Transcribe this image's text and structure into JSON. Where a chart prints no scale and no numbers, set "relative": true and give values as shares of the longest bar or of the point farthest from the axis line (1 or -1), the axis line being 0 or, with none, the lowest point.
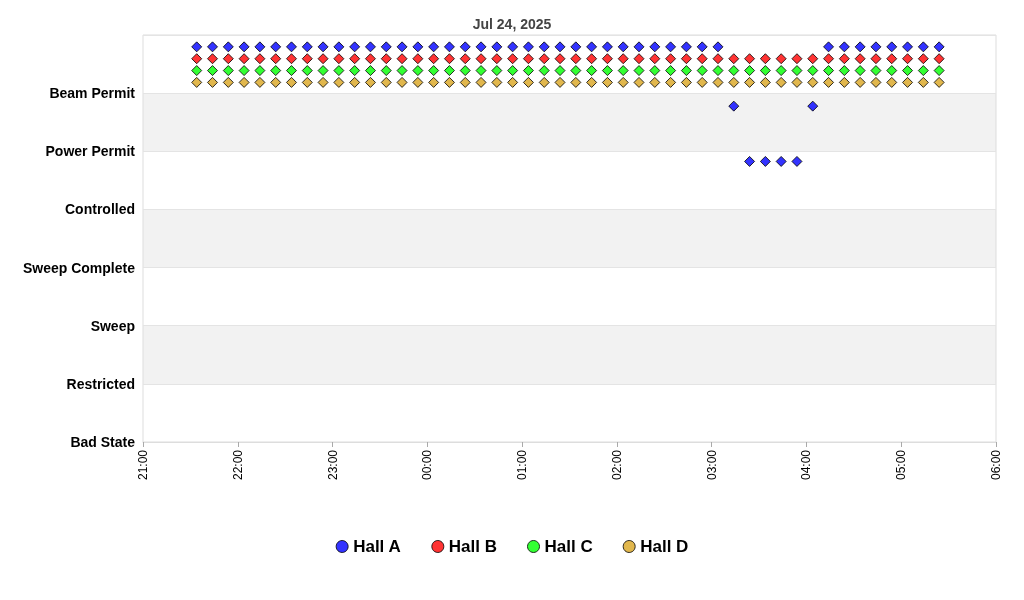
{
  "chart_data": {
    "type": "scatter",
    "title": "Jul 24, 2025",
    "relative": true,
    "x": [
      "2025-07-24T21:34",
      "2025-07-24T21:44",
      "2025-07-24T21:54",
      "2025-07-24T22:04",
      "2025-07-24T22:14",
      "2025-07-24T22:24",
      "2025-07-24T22:34",
      "2025-07-24T22:44",
      "2025-07-24T22:54",
      "2025-07-24T23:04",
      "2025-07-24T23:14",
      "2025-07-24T23:24",
      "2025-07-24T23:34",
      "2025-07-24T23:44",
      "2025-07-24T23:54",
      "2025-07-25T00:04",
      "2025-07-25T00:14",
      "2025-07-25T00:24",
      "2025-07-25T00:34",
      "2025-07-25T00:44",
      "2025-07-25T00:54",
      "2025-07-25T01:04",
      "2025-07-25T01:14",
      "2025-07-25T01:24",
      "2025-07-25T01:34",
      "2025-07-25T01:44",
      "2025-07-25T01:54",
      "2025-07-25T02:04",
      "2025-07-25T02:14",
      "2025-07-25T02:24",
      "2025-07-25T02:34",
      "2025-07-25T02:44",
      "2025-07-25T02:54",
      "2025-07-25T03:04",
      "2025-07-25T03:14",
      "2025-07-25T03:24",
      "2025-07-25T03:34",
      "2025-07-25T03:44",
      "2025-07-25T03:54",
      "2025-07-25T04:04",
      "2025-07-25T04:14",
      "2025-07-25T04:24",
      "2025-07-25T04:34",
      "2025-07-25T04:44",
      "2025-07-25T04:54",
      "2025-07-25T05:04",
      "2025-07-25T05:14",
      "2025-07-25T05:24"
    ],
    "series": [
      {
        "name": "Hall A",
        "color": "#0000ff",
        "values": [
          1,
          1,
          1,
          1,
          1,
          1,
          1,
          1,
          1,
          1,
          1,
          1,
          1,
          1,
          1,
          1,
          1,
          1,
          1,
          1,
          1,
          1,
          1,
          1,
          1,
          1,
          1,
          1,
          1,
          1,
          1,
          1,
          1,
          1,
          0.85,
          0.71,
          0.71,
          0.71,
          0.71,
          0.85,
          1,
          1,
          1,
          1,
          1,
          1,
          1,
          1
        ]
      },
      {
        "name": "Hall B",
        "color": "#ff0000",
        "values": [
          0.97,
          0.97,
          0.97,
          0.97,
          0.97,
          0.97,
          0.97,
          0.97,
          0.97,
          0.97,
          0.97,
          0.97,
          0.97,
          0.97,
          0.97,
          0.97,
          0.97,
          0.97,
          0.97,
          0.97,
          0.97,
          0.97,
          0.97,
          0.97,
          0.97,
          0.97,
          0.97,
          0.97,
          0.97,
          0.97,
          0.97,
          0.97,
          0.97,
          0.97,
          0.97,
          0.97,
          0.97,
          0.97,
          0.97,
          0.97,
          0.97,
          0.97,
          0.97,
          0.97,
          0.97,
          0.97,
          0.97,
          0.97
        ]
      },
      {
        "name": "Hall C",
        "color": "#00ff00",
        "values": [
          0.94,
          0.94,
          0.94,
          0.94,
          0.94,
          0.94,
          0.94,
          0.94,
          0.94,
          0.94,
          0.94,
          0.94,
          0.94,
          0.94,
          0.94,
          0.94,
          0.94,
          0.94,
          0.94,
          0.94,
          0.94,
          0.94,
          0.94,
          0.94,
          0.94,
          0.94,
          0.94,
          0.94,
          0.94,
          0.94,
          0.94,
          0.94,
          0.94,
          0.94,
          0.94,
          0.94,
          0.94,
          0.94,
          0.94,
          0.94,
          0.94,
          0.94,
          0.94,
          0.94,
          0.94,
          0.94,
          0.94,
          0.94
        ]
      },
      {
        "name": "Hall D",
        "color": "#daa520",
        "values": [
          0.91,
          0.91,
          0.91,
          0.91,
          0.91,
          0.91,
          0.91,
          0.91,
          0.91,
          0.91,
          0.91,
          0.91,
          0.91,
          0.91,
          0.91,
          0.91,
          0.91,
          0.91,
          0.91,
          0.91,
          0.91,
          0.91,
          0.91,
          0.91,
          0.91,
          0.91,
          0.91,
          0.91,
          0.91,
          0.91,
          0.91,
          0.91,
          0.91,
          0.91,
          0.91,
          0.91,
          0.91,
          0.91,
          0.91,
          0.91,
          0.91,
          0.91,
          0.91,
          0.91,
          0.91,
          0.91,
          0.91,
          0.91
        ]
      }
    ],
    "annotations": [
      "Beam Permit",
      "Power Permit",
      "Controlled",
      "Sweep Complete",
      "Sweep",
      "Restricted",
      "Bad State"
    ],
    "xlim": [
      "2025-07-24T21:00",
      "2025-07-25T06:00"
    ],
    "xticks": [
      {
        "value": "2025-07-24T21:00",
        "label": "21:00"
      },
      {
        "value": "2025-07-24T22:00",
        "label": "22:00"
      },
      {
        "value": "2025-07-24T23:00",
        "label": "23:00"
      },
      {
        "value": "2025-07-25T00:00",
        "label": "00:00"
      },
      {
        "value": "2025-07-25T01:00",
        "label": "01:00"
      },
      {
        "value": "2025-07-25T02:00",
        "label": "02:00"
      },
      {
        "value": "2025-07-25T03:00",
        "label": "03:00"
      },
      {
        "value": "2025-07-25T04:00",
        "label": "04:00"
      },
      {
        "value": "2025-07-25T05:00",
        "label": "05:00"
      },
      {
        "value": "2025-07-25T06:00",
        "label": "06:00"
      }
    ],
    "grid": "y",
    "legend": "bottom",
    "marker": "diamond"
  }
}
